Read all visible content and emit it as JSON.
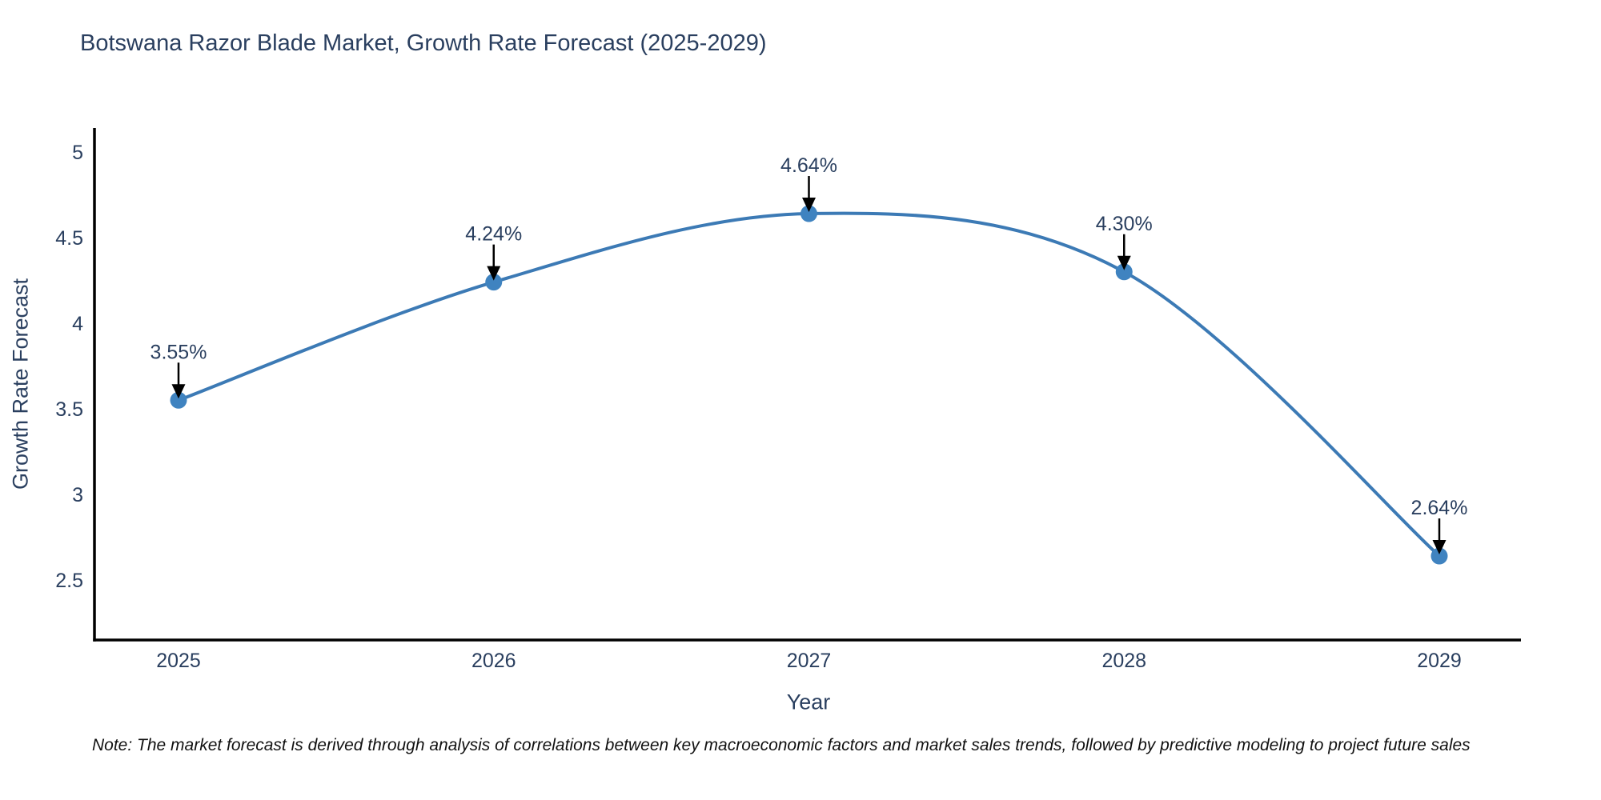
{
  "figure": {
    "note": "Note: The market forecast is derived through analysis of correlations between key macroeconomic factors and market sales trends, followed by predictive modeling to project future sales"
  },
  "colors": {
    "line": "#3c7ab5",
    "marker": "#3f83c0",
    "title_text": "#2a3f5f",
    "tick_text": "#2a3f5f",
    "annotation_text": "#2a3f5f",
    "axis_line": "#000000",
    "arrow": "#000000",
    "note_text": "#111111",
    "background": "#ffffff"
  },
  "chart_data": {
    "type": "line",
    "title": "Botswana Razor Blade Market, Growth Rate Forecast (2025-2029)",
    "xlabel": "Year",
    "ylabel": "Growth Rate Forecast",
    "x": [
      "2025",
      "2026",
      "2027",
      "2028",
      "2029"
    ],
    "series": [
      {
        "name": "Growth Rate Forecast",
        "values": [
          3.55,
          4.24,
          4.64,
          4.3,
          2.64
        ]
      }
    ],
    "point_labels": [
      "3.55%",
      "4.24%",
      "4.64%",
      "4.30%",
      "2.64%"
    ],
    "yticks": [
      2.5,
      3,
      3.5,
      4,
      4.5,
      5
    ],
    "ylim": [
      2.15,
      5.14
    ],
    "line_shape": "spline",
    "grid": false,
    "legend_position": "none",
    "annotations": "each point labeled with its percent value and a downward black arrow"
  }
}
